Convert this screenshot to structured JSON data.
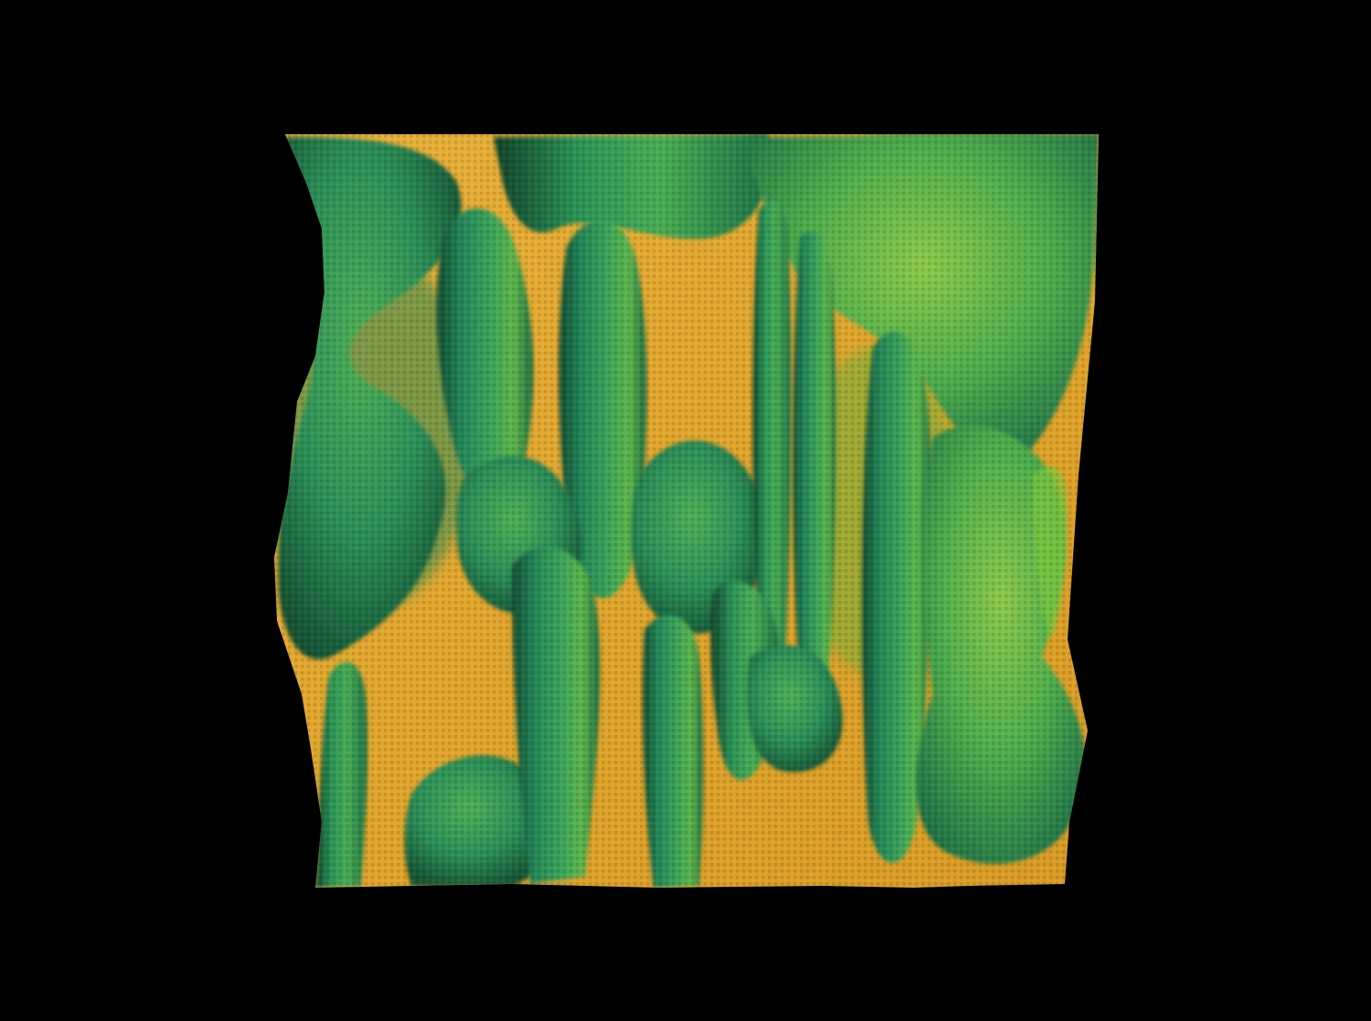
{
  "scene": {
    "background_color": "#000000",
    "subject": "deformed-surface-render",
    "palette": {
      "base_yellow": "#E3A62C",
      "dark_green": "#1F7A4E",
      "mid_green": "#2E9A5C",
      "light_green": "#4FB34A",
      "lime": "#7CC63E",
      "shadow": "#0E3A26"
    }
  }
}
